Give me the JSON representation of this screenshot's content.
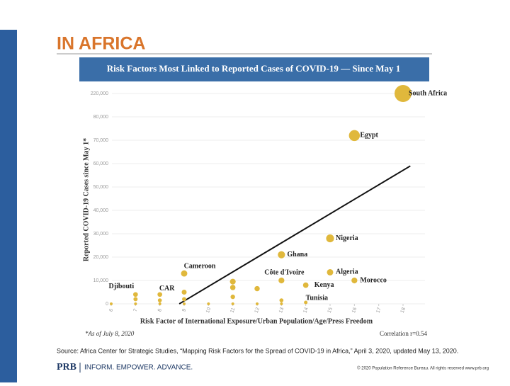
{
  "slide_title": "IN AFRICA",
  "source": "Source: Africa Center for Strategic Studies, “Mapping Risk Factors for the Spread of COVID-19 in Africa,” April 3, 2020, updated May 13, 2020.",
  "footer": {
    "brand": "PRB",
    "tagline": "INFORM. EMPOWER. ADVANCE.",
    "copyright": "© 2020 Population Reference Bureau. All rights reserved www.prb.org"
  },
  "chart_data": {
    "type": "scatter",
    "title": "Risk Factors Most Linked to Reported Cases of COVID-19 — Since May 1",
    "xlabel": "Risk Factor of International Exposure/Urban Population/Age/Press Freedom",
    "ylabel": "Reported COVID-19 Cases since May 1*",
    "note": "*As of July 8, 2020",
    "annotation": "Correlation r=0.54",
    "xlim": [
      6,
      18
    ],
    "xticks": [
      6,
      7,
      8,
      9,
      10,
      11,
      12,
      13,
      14,
      15,
      16,
      17,
      18
    ],
    "ylim": [
      0,
      220000
    ],
    "yticks": [
      0,
      {
        "value": 10000,
        "label": "10,000"
      },
      {
        "value": 20000,
        "label": "20,000"
      },
      {
        "value": 30000,
        "label": "30,000"
      },
      {
        "value": 40000,
        "label": "40,000"
      },
      {
        "value": 50000,
        "label": "50,000"
      },
      {
        "value": 60000,
        "label": "60,000"
      },
      {
        "value": 70000,
        "label": "70,000"
      },
      {
        "value": 80000,
        "label": "80,000"
      },
      {
        "value": 220000,
        "label": "220,000"
      }
    ],
    "series": [
      {
        "color": "#e0b83c",
        "x": [
          7,
          8,
          9,
          13,
          13,
          14,
          14,
          15,
          15,
          16,
          16,
          18,
          6,
          7,
          7,
          8,
          8,
          9,
          9,
          9,
          10,
          11,
          11,
          11,
          11,
          12,
          12,
          13,
          13
        ],
        "values": [
          4000,
          4000,
          13000,
          21000,
          10000,
          8000,
          600,
          13500,
          28000,
          10000,
          72000,
          220000,
          0,
          0,
          2000,
          0,
          1500,
          0,
          2000,
          5000,
          0,
          0,
          3000,
          7000,
          9500,
          0,
          6500,
          0,
          1500
        ],
        "labels": [
          "Djibouti",
          "CAR",
          "Cameroon",
          "Ghana",
          "Côte d'Ivoire",
          "Kenya",
          "Tunisia",
          "Algeria",
          "Nigeria",
          "Morocco",
          "Egypt",
          "South Africa",
          null,
          null,
          null,
          null,
          null,
          null,
          null,
          null,
          null,
          null,
          null,
          null,
          null,
          null,
          null,
          null,
          null
        ]
      }
    ],
    "trendline": {
      "color": "#111111",
      "x": [
        8.8,
        18.3
      ],
      "y": [
        0,
        59000
      ]
    }
  }
}
